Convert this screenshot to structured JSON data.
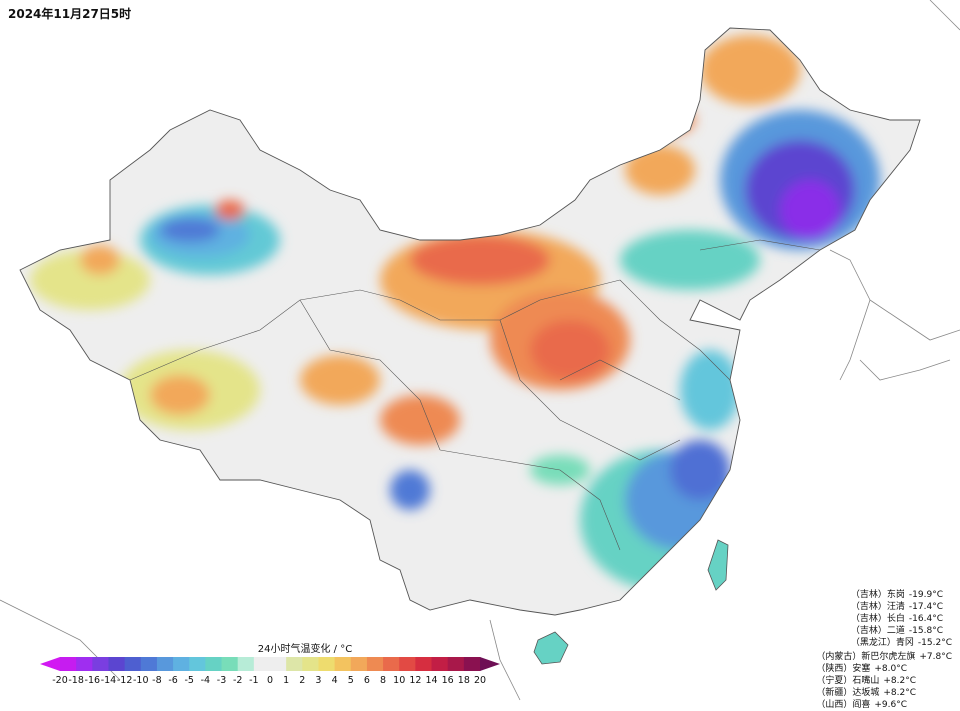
{
  "title": "2024年11月27日5时",
  "legend": {
    "title": "24小时气温变化 / °C",
    "ticks": [
      "-20",
      "-18",
      "-16",
      "-14",
      "-12",
      "-10",
      "-8",
      "-6",
      "-5",
      "-4",
      "-3",
      "-2",
      "-1",
      "0",
      "1",
      "2",
      "3",
      "4",
      "5",
      "6",
      "8",
      "10",
      "12",
      "14",
      "16",
      "18",
      "20"
    ],
    "colors": [
      "#c61cf0",
      "#9f2ef0",
      "#7a3ee0",
      "#5b45d0",
      "#4e5fd0",
      "#4f79d6",
      "#5898dc",
      "#5fb1e1",
      "#63c6dc",
      "#66d2c4",
      "#78ddb9",
      "#b7ecd7",
      "#eeeeee",
      "#eeeeee",
      "#dde6a8",
      "#e4e48a",
      "#eedc6e",
      "#f3c35f",
      "#f2a85a",
      "#ee8a52",
      "#e96a4b",
      "#e24a44",
      "#d62e40",
      "#c21e45",
      "#a8184a",
      "#8a1150"
    ]
  },
  "cold_stations": [
    {
      "province": "（吉林）",
      "name": "东岗",
      "value": "-19.9°C"
    },
    {
      "province": "（吉林）",
      "name": "汪清",
      "value": "-17.4°C"
    },
    {
      "province": "（吉林）",
      "name": "长白",
      "value": "-16.4°C"
    },
    {
      "province": "（吉林）",
      "name": "二道",
      "value": "-15.8°C"
    },
    {
      "province": "（黑龙江）",
      "name": "青冈",
      "value": "-15.2°C"
    }
  ],
  "warm_stations": [
    {
      "province": "（内蒙古）",
      "name": "新巴尔虎左旗",
      "value": "+7.8°C"
    },
    {
      "province": "（陕西）",
      "name": "安塞",
      "value": "+8.0°C"
    },
    {
      "province": "（宁夏）",
      "name": "石嘴山",
      "value": "+8.2°C"
    },
    {
      "province": "（新疆）",
      "name": "达坂城",
      "value": "+8.2°C"
    },
    {
      "province": "（山西）",
      "name": "阎喜",
      "value": "+9.6°C"
    }
  ],
  "colors": {
    "cold_core": "#8a2ee8",
    "cold": "#4f6fd4",
    "cool": "#62c9d6",
    "neutral": "#eeeeee",
    "mild": "#e4e48a",
    "warm": "#f2a85a",
    "hot": "#e96a4b"
  }
}
